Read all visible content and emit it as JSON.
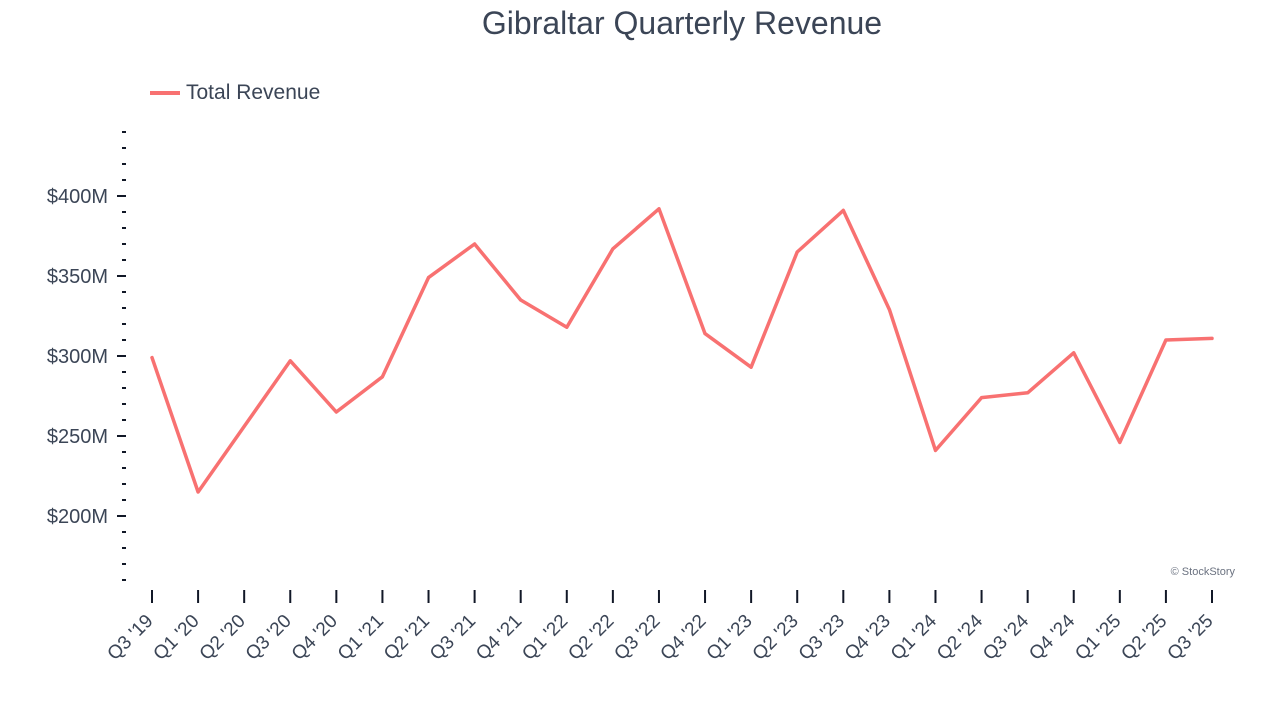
{
  "chart_data": {
    "type": "line",
    "title": "Gibraltar Quarterly Revenue",
    "categories": [
      "Q3 '19",
      "Q1 '20",
      "Q2 '20",
      "Q3 '20",
      "Q4 '20",
      "Q1 '21",
      "Q2 '21",
      "Q3 '21",
      "Q4 '21",
      "Q1 '22",
      "Q2 '22",
      "Q3 '22",
      "Q4 '22",
      "Q1 '23",
      "Q2 '23",
      "Q3 '23",
      "Q4 '23",
      "Q1 '24",
      "Q2 '24",
      "Q3 '24",
      "Q4 '24",
      "Q1 '25",
      "Q2 '25",
      "Q3 '25"
    ],
    "series": [
      {
        "name": "Total Revenue",
        "color": "#f87171",
        "values": [
          299,
          215,
          256,
          297,
          265,
          287,
          349,
          370,
          335,
          318,
          367,
          392,
          314,
          293,
          365,
          391,
          329,
          241,
          274,
          277,
          302,
          246,
          310,
          311
        ]
      }
    ],
    "yticks": [
      {
        "value": 200,
        "label": "$200M"
      },
      {
        "value": 250,
        "label": "$250M"
      },
      {
        "value": 300,
        "label": "$300M"
      },
      {
        "value": 350,
        "label": "$350M"
      },
      {
        "value": 400,
        "label": "$400M"
      }
    ],
    "ylim": [
      160,
      440
    ],
    "xlabel": "",
    "ylabel": "",
    "grid": false,
    "legend_position": "top-left",
    "credit": "© StockStory"
  }
}
